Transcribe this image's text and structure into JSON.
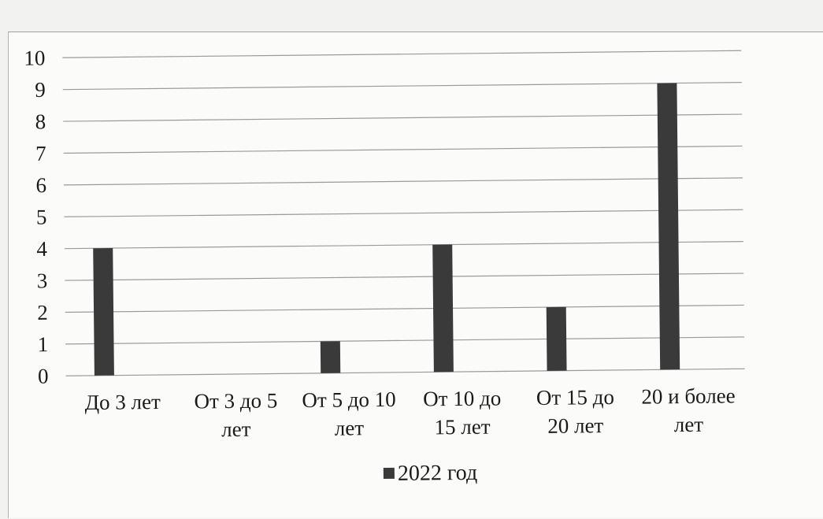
{
  "chart_data": {
    "type": "bar",
    "categories": [
      "До 3 лет",
      "От 3 до 5 лет",
      "От 5 до 10 лет",
      "От 10 до 15 лет",
      "От 15 до 20 лет",
      "20 и более лет"
    ],
    "category_lines": [
      [
        "До 3 лет"
      ],
      [
        "От 3 до 5",
        "лет"
      ],
      [
        "От 5 до 10",
        "лет"
      ],
      [
        "От 10 до",
        "15 лет"
      ],
      [
        "От 15 до",
        "20 лет"
      ],
      [
        "20 и более",
        "лет"
      ]
    ],
    "series": [
      {
        "name": "2022 год",
        "values": [
          4.0,
          0,
          1.0,
          4.0,
          2.0,
          9.0
        ],
        "color": "#3a3a3a"
      }
    ],
    "yticks": [
      "0",
      "1",
      "2",
      "3",
      "4",
      "5",
      "6",
      "7",
      "8",
      "9",
      "10"
    ],
    "ylim": [
      0,
      10
    ],
    "grid": true,
    "legend_position": "bottom",
    "title": "",
    "xlabel": "",
    "ylabel": ""
  }
}
